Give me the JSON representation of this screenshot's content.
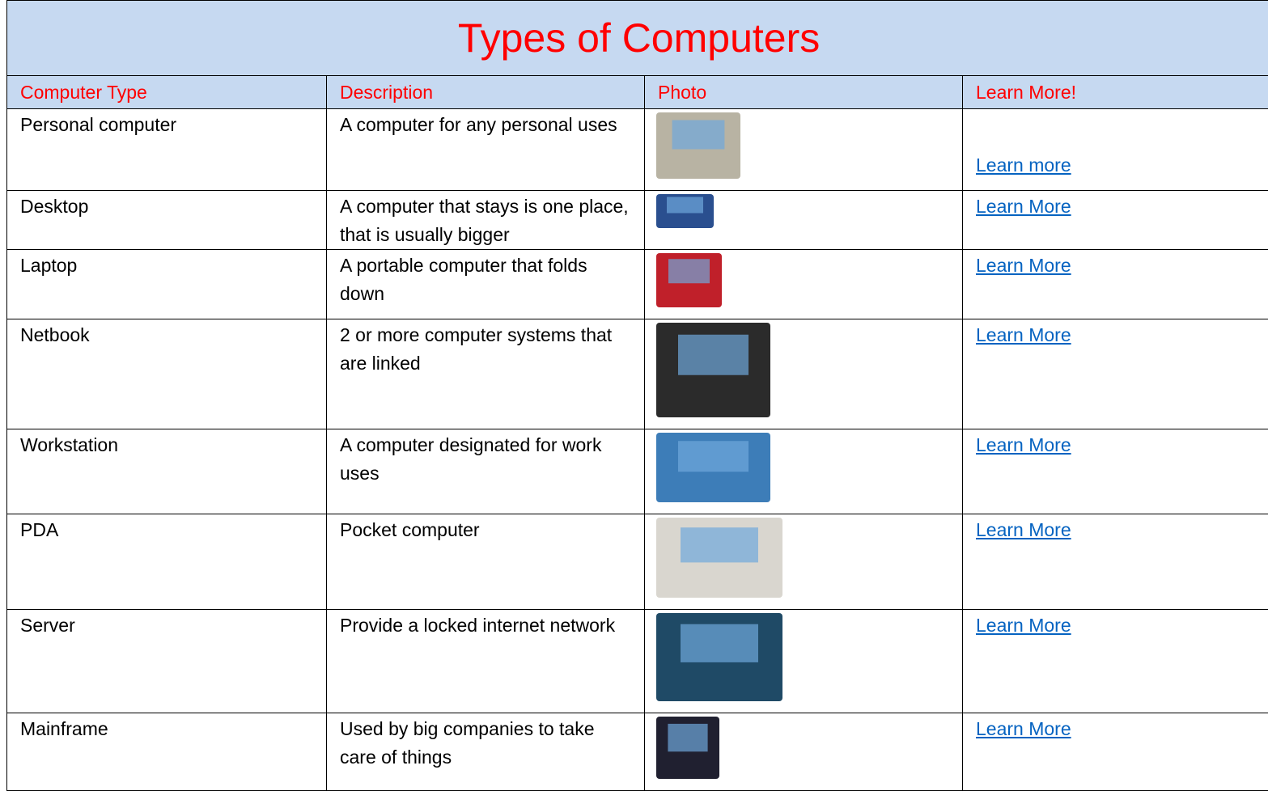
{
  "header": {
    "title": "Types of Computers"
  },
  "table": {
    "columns": [
      "Computer Type",
      "Description",
      "Photo",
      "Learn More!"
    ],
    "rows": [
      [
        "Personal computer",
        "A computer for any personal uses",
        "Learn more"
      ],
      [
        "Desktop",
        "A computer that stays is one place, that is usually bigger",
        "Learn More"
      ],
      [
        "Laptop",
        "A portable computer that folds down",
        "Learn More"
      ],
      [
        "Netbook",
        "2 or more computer systems that are linked",
        "Learn More"
      ],
      [
        "Workstation",
        "A computer designated for work uses",
        "Learn More"
      ],
      [
        "PDA",
        "Pocket computer",
        "Learn More"
      ],
      [
        "Server",
        "Provide a locked internet network",
        "Learn More"
      ],
      [
        "Mainframe",
        "Used by big companies to take care of things",
        "Learn More"
      ]
    ]
  }
}
